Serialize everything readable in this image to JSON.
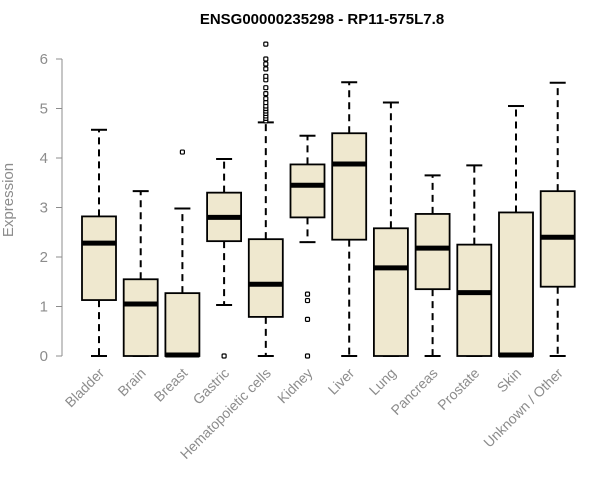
{
  "chart_data": {
    "type": "boxplot",
    "title": "ENSG00000235298 - RP11-575L7.8",
    "xlabel": "",
    "ylabel": "Expression",
    "ylim": [
      0,
      6.2
    ],
    "yticks": [
      0,
      1,
      2,
      3,
      4,
      5,
      6
    ],
    "grid": false,
    "legend": "none",
    "box_color": "#efe8cf",
    "categories": [
      "Bladder",
      "Brain",
      "Breast",
      "Gastric",
      "Hematopoietic cells",
      "Kidney",
      "Liver",
      "Lung",
      "Pancreas",
      "Prostate",
      "Skin",
      "Unknown / Other"
    ],
    "boxes": [
      {
        "name": "Bladder",
        "whisker_low": 0,
        "q1": 1.13,
        "median": 2.28,
        "q3": 2.82,
        "whisker_high": 4.57,
        "outliers": []
      },
      {
        "name": "Brain",
        "whisker_low": 0,
        "q1": 0,
        "median": 1.05,
        "q3": 1.55,
        "whisker_high": 3.33,
        "outliers": []
      },
      {
        "name": "Breast",
        "whisker_low": 0,
        "q1": 0,
        "median": 0.02,
        "q3": 1.27,
        "whisker_high": 2.98,
        "outliers": [
          4.12
        ]
      },
      {
        "name": "Gastric",
        "whisker_low": 1.03,
        "q1": 2.32,
        "median": 2.8,
        "q3": 3.3,
        "whisker_high": 3.98,
        "outliers": [
          0
        ]
      },
      {
        "name": "Hematopoietic cells",
        "whisker_low": 0,
        "q1": 0.79,
        "median": 1.45,
        "q3": 2.36,
        "whisker_high": 4.72,
        "outliers": [
          4.75,
          4.8,
          4.85,
          4.9,
          4.95,
          5.0,
          5.05,
          5.12,
          5.2,
          5.3,
          5.42,
          5.58,
          5.65,
          5.8,
          5.9,
          6.0,
          6.3
        ]
      },
      {
        "name": "Kidney",
        "whisker_low": 2.3,
        "q1": 2.8,
        "median": 3.45,
        "q3": 3.87,
        "whisker_high": 4.45,
        "outliers": [
          1.25,
          1.12,
          0.74,
          0
        ]
      },
      {
        "name": "Liver",
        "whisker_low": 0,
        "q1": 2.35,
        "median": 3.88,
        "q3": 4.5,
        "whisker_high": 5.53,
        "outliers": []
      },
      {
        "name": "Lung",
        "whisker_low": 0,
        "q1": 0,
        "median": 1.78,
        "q3": 2.58,
        "whisker_high": 5.12,
        "outliers": []
      },
      {
        "name": "Pancreas",
        "whisker_low": 0,
        "q1": 1.35,
        "median": 2.18,
        "q3": 2.87,
        "whisker_high": 3.65,
        "outliers": []
      },
      {
        "name": "Prostate",
        "whisker_low": 0,
        "q1": 0,
        "median": 1.28,
        "q3": 2.25,
        "whisker_high": 3.85,
        "outliers": []
      },
      {
        "name": "Skin",
        "whisker_low": 0,
        "q1": 0,
        "median": 0.02,
        "q3": 2.9,
        "whisker_high": 5.05,
        "outliers": []
      },
      {
        "name": "Unknown / Other",
        "whisker_low": 0,
        "q1": 1.4,
        "median": 2.4,
        "q3": 3.33,
        "whisker_high": 5.52,
        "outliers": []
      }
    ]
  }
}
